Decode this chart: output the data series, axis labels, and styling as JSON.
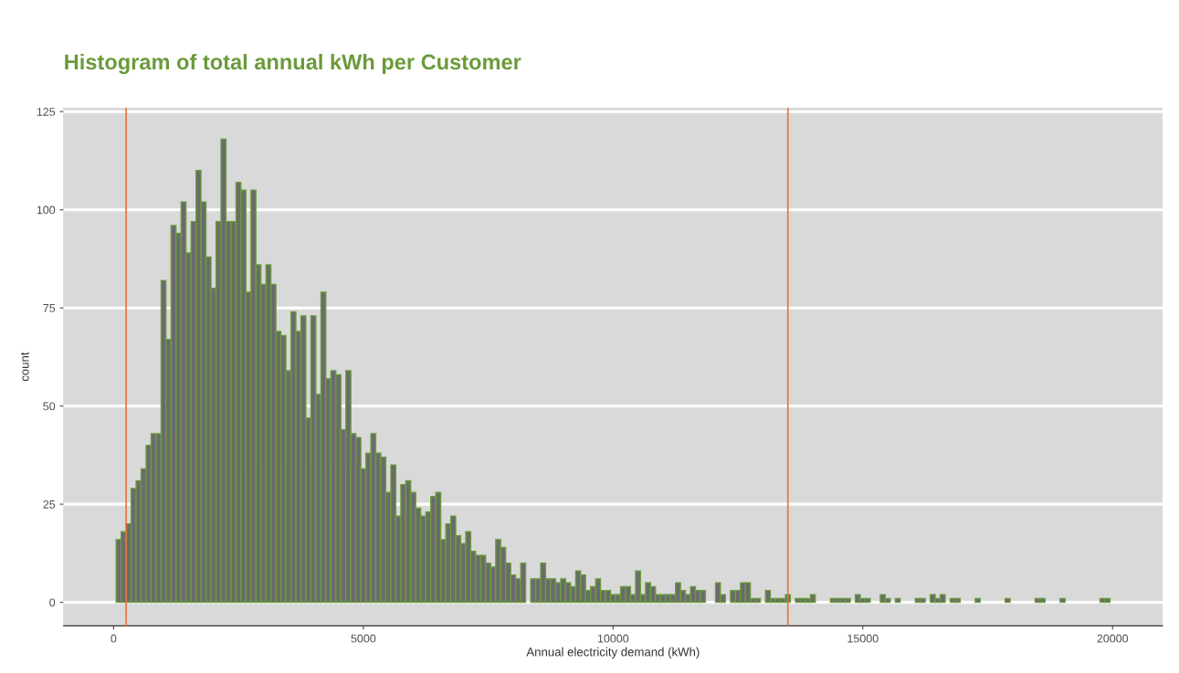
{
  "chart_data": {
    "type": "histogram",
    "title": "Histogram of total annual kWh per Customer",
    "xlabel": "Annual electricity demand (kWh)",
    "ylabel": "count",
    "bins": [
      50,
      150,
      250,
      350,
      450,
      550,
      650,
      750,
      850,
      950,
      1050,
      1150,
      1250,
      1350,
      1450,
      1550,
      1650,
      1750,
      1850,
      1950,
      2050,
      2150,
      2250,
      2350,
      2450,
      2550,
      2650,
      2750,
      2850,
      2950,
      3050,
      3150,
      3250,
      3350,
      3450,
      3550,
      3650,
      3750,
      3850,
      3950,
      4050,
      4150,
      4250,
      4350,
      4450,
      4550,
      4650,
      4750,
      4850,
      4950,
      5050,
      5150,
      5250,
      5350,
      5450,
      5550,
      5650,
      5750,
      5850,
      5950,
      6050,
      6150,
      6250,
      6350,
      6450,
      6550,
      6650,
      6750,
      6850,
      6950,
      7050,
      7150,
      7250,
      7350,
      7450,
      7550,
      7650,
      7750,
      7850,
      7950,
      8050,
      8150,
      8250,
      8350,
      8450,
      8550,
      8650,
      8750,
      8850,
      8950,
      9050,
      9150,
      9250,
      9350,
      9450,
      9550,
      9650,
      9750,
      9850,
      9950,
      10050,
      10150,
      10250,
      10350,
      10450,
      10550,
      10650,
      10750,
      10850,
      10950,
      11050,
      11150,
      11250,
      11350,
      11450,
      11550,
      11650,
      11750,
      11850,
      11950,
      12050,
      12150,
      12250,
      12350,
      12450,
      12550,
      12650,
      12750,
      12850,
      12950,
      13050,
      13150,
      13250,
      13350,
      13450,
      13550,
      13650,
      13750,
      13850,
      13950,
      14050,
      14150,
      14250,
      14350,
      14450,
      14550,
      14650,
      14750,
      14850,
      14950,
      15050,
      15150,
      15250,
      15350,
      15450,
      15550,
      15650,
      15750,
      15850,
      15950,
      16050,
      16150,
      16250,
      16350,
      16450,
      16550,
      16650,
      16750,
      16850,
      16950,
      17050,
      17150,
      17250,
      17350,
      17450,
      17550,
      17650,
      17750,
      17850,
      17950,
      18050,
      18150,
      18250,
      18350,
      18450,
      18550,
      18650,
      18750,
      18850,
      18950,
      19050,
      19150,
      19250,
      19350,
      19450,
      19550,
      19650,
      19750,
      19850,
      19950
    ],
    "values": [
      16,
      18,
      20,
      29,
      31,
      34,
      40,
      43,
      43,
      82,
      67,
      96,
      94,
      102,
      89,
      97,
      110,
      102,
      88,
      80,
      97,
      118,
      97,
      97,
      107,
      105,
      79,
      105,
      86,
      81,
      86,
      81,
      69,
      68,
      59,
      74,
      69,
      73,
      47,
      73,
      53,
      79,
      57,
      59,
      58,
      44,
      59,
      43,
      42,
      34,
      38,
      43,
      38,
      37,
      28,
      35,
      22,
      30,
      31,
      28,
      24,
      22,
      23,
      27,
      28,
      16,
      20,
      22,
      17,
      15,
      18,
      13,
      12,
      12,
      10,
      9,
      16,
      14,
      10,
      7,
      6,
      10,
      0,
      6,
      6,
      10,
      6,
      6,
      5,
      6,
      5,
      4,
      8,
      7,
      3,
      4,
      6,
      3,
      3,
      2,
      2,
      4,
      4,
      2,
      8,
      2,
      5,
      4,
      2,
      2,
      2,
      2,
      5,
      3,
      2,
      4,
      3,
      3,
      0,
      0,
      5,
      2,
      0,
      3,
      3,
      5,
      5,
      1,
      1,
      0,
      3,
      1,
      1,
      1,
      2,
      0,
      1,
      1,
      1,
      2,
      0,
      0,
      0,
      1,
      1,
      1,
      1,
      0,
      2,
      1,
      1,
      0,
      0,
      2,
      1,
      0,
      1,
      0,
      0,
      0,
      1,
      1,
      0,
      2,
      1,
      2,
      0,
      1,
      1,
      0,
      0,
      0,
      1,
      0,
      0,
      0,
      0,
      0,
      1,
      0,
      0,
      0,
      0,
      0,
      1,
      1,
      0,
      0,
      0,
      1,
      0,
      0,
      0,
      0,
      0,
      0,
      0,
      1,
      1
    ],
    "color": "#6b6b6b",
    "ref_lines": [
      {
        "axis": "x",
        "value": 250,
        "color": "#e8743b"
      },
      {
        "axis": "x",
        "value": 13500,
        "color": "#e8743b"
      }
    ],
    "xlim": [
      -1000,
      21000
    ],
    "xticks": [
      0,
      5000,
      10000,
      15000,
      20000
    ],
    "ylim": [
      -6,
      126
    ],
    "yticks": [
      0,
      25,
      50,
      75,
      100,
      125
    ],
    "grid": "y",
    "legend": false
  }
}
